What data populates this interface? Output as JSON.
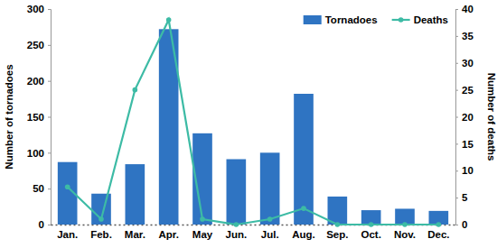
{
  "chart_data": {
    "type": "bar",
    "categories": [
      "Jan.",
      "Feb.",
      "Mar.",
      "Apr.",
      "May",
      "Jun.",
      "Jul.",
      "Aug.",
      "Sep.",
      "Oct.",
      "Nov.",
      "Dec."
    ],
    "series": [
      {
        "name": "Tornadoes",
        "type": "bar",
        "color": "#2f74c2",
        "values": [
          87,
          43,
          84,
          272,
          127,
          91,
          100,
          182,
          39,
          20,
          22,
          19
        ]
      },
      {
        "name": "Deaths",
        "type": "line",
        "axis": "y2",
        "color": "#3dbba5",
        "marker": "circle",
        "values": [
          7,
          1,
          25,
          38,
          1,
          0,
          1,
          3,
          0,
          0,
          0,
          0
        ]
      }
    ],
    "y_label": "Number of tornadoes",
    "y2_label": "Number of deaths",
    "ylim": [
      0,
      300
    ],
    "yticks": [
      0,
      50,
      100,
      150,
      200,
      250,
      300
    ],
    "y2lim": [
      0,
      40
    ],
    "y2ticks": [
      0,
      5,
      10,
      15,
      20,
      25,
      30,
      35,
      40
    ],
    "grid": false,
    "legend": "top-right"
  }
}
